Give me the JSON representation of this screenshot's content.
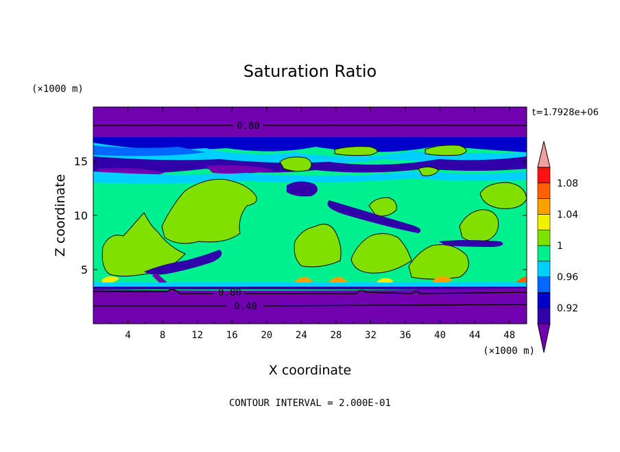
{
  "chart_data": {
    "type": "heatmap",
    "title": "Saturation Ratio",
    "xlabel": "X coordinate",
    "ylabel": "Z coordinate",
    "x_unit": "(×1000 m)",
    "y_unit": "(×1000 m)",
    "time_label": "t=1.7928e+06",
    "footer": "CONTOUR INTERVAL = 2.000E-01",
    "xlim": [
      0,
      50
    ],
    "ylim": [
      0,
      20
    ],
    "x_ticks": [
      "4",
      "8",
      "12",
      "16",
      "20",
      "24",
      "28",
      "32",
      "36",
      "40",
      "44",
      "48"
    ],
    "y_ticks": [
      "5",
      "10",
      "15"
    ],
    "contour_labels": [
      "0.80",
      "0.80",
      "0.40"
    ],
    "colorbar": {
      "levels": [
        0.9,
        0.92,
        0.94,
        0.96,
        0.98,
        1.0,
        1.02,
        1.04,
        1.06,
        1.08,
        1.1
      ],
      "tick_labels": [
        "1.08",
        "1.04",
        "1",
        "0.96",
        "0.92"
      ],
      "colors": [
        "#7000b0",
        "#3000a8",
        "#0000c8",
        "#0068ff",
        "#00d0ff",
        "#00f090",
        "#80e000",
        "#f0f000",
        "#ffa000",
        "#ff6000",
        "#ff1010",
        "#f0a0a0"
      ]
    },
    "bands": [
      {
        "z": [
          0,
          3.3
        ],
        "value": "<0.90"
      },
      {
        "z": [
          3.3,
          14
        ],
        "value": "0.98-1.00 mostly, patches 1.00-1.02"
      },
      {
        "z": [
          14,
          17.2
        ],
        "value": "0.90-0.96 layered"
      },
      {
        "z": [
          17.2,
          20
        ],
        "value": "<0.90"
      }
    ]
  }
}
